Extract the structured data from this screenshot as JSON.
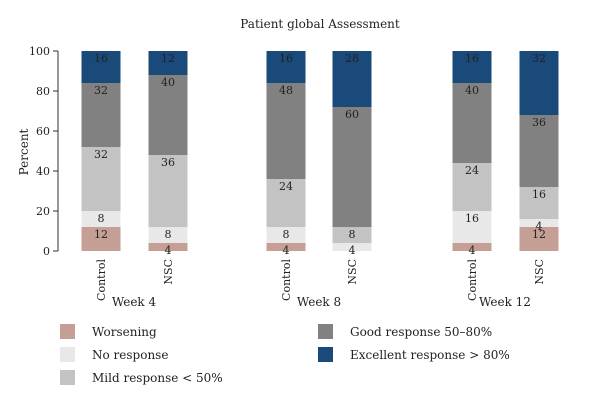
{
  "chart_data": {
    "type": "bar",
    "stacked": true,
    "title": "Patient global Assessment",
    "ylabel": "Percent",
    "ylim": [
      0,
      100
    ],
    "yticks": [
      0,
      20,
      40,
      60,
      80,
      100
    ],
    "groups": [
      {
        "label": "Week 4",
        "bars": [
          {
            "label": "Control",
            "values": [
              12,
              8,
              32,
              32,
              16
            ]
          },
          {
            "label": "NSC",
            "values": [
              4,
              8,
              36,
              40,
              12
            ]
          }
        ]
      },
      {
        "label": "Week 8",
        "bars": [
          {
            "label": "Control",
            "values": [
              4,
              8,
              24,
              48,
              16
            ]
          },
          {
            "label": "NSC",
            "values": [
              0,
              4,
              8,
              60,
              28
            ]
          }
        ]
      },
      {
        "label": "Week 12",
        "bars": [
          {
            "label": "Control",
            "values": [
              4,
              16,
              24,
              40,
              16
            ]
          },
          {
            "label": "NSC",
            "values": [
              12,
              4,
              16,
              36,
              32
            ]
          }
        ]
      }
    ],
    "series": [
      {
        "name": "Worsening",
        "color": "#c59f95"
      },
      {
        "name": "No response",
        "color": "#e8e8e8"
      },
      {
        "name": "Mild response < 50%",
        "color": "#c3c3c3"
      },
      {
        "name": "Good response 50–80%",
        "color": "#818181"
      },
      {
        "name": "Excellent response > 80%",
        "color": "#1a4a7a"
      }
    ],
    "value_labels": {
      "Week 4|Control": [
        "12",
        "8",
        "32",
        "32",
        "16"
      ],
      "Week 4|NSC": [
        "4",
        "8",
        "36",
        "40",
        "12"
      ],
      "Week 8|Control": [
        "4",
        "8",
        "24",
        "48",
        "16"
      ],
      "Week 8|NSC": [
        "",
        "4",
        "8",
        "60",
        "28"
      ],
      "Week 12|Control": [
        "4",
        "16",
        "24",
        "40",
        "16"
      ],
      "Week 12|NSC": [
        "12",
        "4",
        "16",
        "36",
        "32"
      ]
    },
    "legend_placement": "bottom",
    "grid": false
  }
}
